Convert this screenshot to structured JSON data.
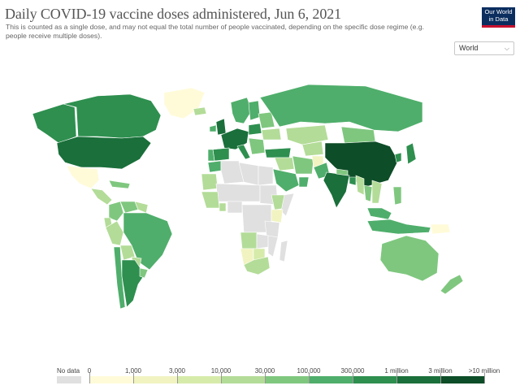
{
  "header": {
    "title": "Daily COVID-19 vaccine doses administered, Jun 6, 2021",
    "subtitle": "This is counted as a single dose, and may not equal the total number of people vaccinated, depending on the specific dose regime (e.g. people receive multiple doses).",
    "logo_line1": "Our World",
    "logo_line2": "in Data"
  },
  "region_select": {
    "value": "World",
    "icon": "chevron-down-icon"
  },
  "legend": {
    "no_data_label": "No data",
    "no_data_color": "#e0e0e0",
    "ticks": [
      "0",
      "1,000",
      "3,000",
      "10,000",
      "30,000",
      "100,000",
      "300,000",
      "1 million",
      "3 million",
      ">10 million"
    ],
    "colors": [
      "#fffbd9",
      "#f1f4c1",
      "#d6ebaa",
      "#b3dc98",
      "#7fc77f",
      "#4fae6b",
      "#2e8f4f",
      "#1a6f3a",
      "#0d4d27"
    ]
  },
  "map": {
    "ocean_color": "#ffffff",
    "regions": [
      {
        "name": "Canada",
        "bin": 6
      },
      {
        "name": "Greenland",
        "bin": 0
      },
      {
        "name": "Alaska",
        "bin": 6
      },
      {
        "name": "United States",
        "bin": 7
      },
      {
        "name": "Mexico",
        "bin": 0
      },
      {
        "name": "Central America",
        "bin": 3
      },
      {
        "name": "Caribbean",
        "bin": 4
      },
      {
        "name": "Colombia",
        "bin": 4
      },
      {
        "name": "Venezuela",
        "bin": 4
      },
      {
        "name": "Guianas",
        "bin": 3
      },
      {
        "name": "Ecuador",
        "bin": 3
      },
      {
        "name": "Peru",
        "bin": 3
      },
      {
        "name": "Brazil",
        "bin": 5
      },
      {
        "name": "Bolivia",
        "bin": 3
      },
      {
        "name": "Paraguay",
        "bin": 3
      },
      {
        "name": "Uruguay",
        "bin": 4
      },
      {
        "name": "Chile",
        "bin": 5
      },
      {
        "name": "Argentina",
        "bin": 6
      },
      {
        "name": "Iceland",
        "bin": 3
      },
      {
        "name": "Scandinavia",
        "bin": 5
      },
      {
        "name": "Finland",
        "bin": 5
      },
      {
        "name": "United Kingdom",
        "bin": 7
      },
      {
        "name": "Ireland",
        "bin": 5
      },
      {
        "name": "Western Europe",
        "bin": 7
      },
      {
        "name": "Spain",
        "bin": 6
      },
      {
        "name": "Portugal",
        "bin": 5
      },
      {
        "name": "Italy",
        "bin": 6
      },
      {
        "name": "Poland",
        "bin": 6
      },
      {
        "name": "Eastern Europe",
        "bin": 4
      },
      {
        "name": "Ukraine",
        "bin": 3
      },
      {
        "name": "Balkans",
        "bin": 4
      },
      {
        "name": "Turkey",
        "bin": 6
      },
      {
        "name": "Russia",
        "bin": 5
      },
      {
        "name": "Kazakhstan",
        "bin": 3
      },
      {
        "name": "Central Asia",
        "bin": 3
      },
      {
        "name": "Mongolia",
        "bin": 4
      },
      {
        "name": "China",
        "bin": 8
      },
      {
        "name": "Japan",
        "bin": 6
      },
      {
        "name": "South Korea",
        "bin": 6
      },
      {
        "name": "Saudi Arabia",
        "bin": 5
      },
      {
        "name": "Iran",
        "bin": 4
      },
      {
        "name": "Iraq and Syria",
        "bin": 3
      },
      {
        "name": "Gulf states",
        "bin": 5
      },
      {
        "name": "Afghanistan",
        "bin": 1
      },
      {
        "name": "Pakistan",
        "bin": 5
      },
      {
        "name": "India",
        "bin": 7
      },
      {
        "name": "Nepal",
        "bin": 4
      },
      {
        "name": "Bangladesh",
        "bin": 6
      },
      {
        "name": "Myanmar",
        "bin": 3
      },
      {
        "name": "Thailand",
        "bin": 4
      },
      {
        "name": "Indochina",
        "bin": 3
      },
      {
        "name": "Malaysia",
        "bin": 5
      },
      {
        "name": "Indonesia",
        "bin": 5
      },
      {
        "name": "Philippines",
        "bin": 4
      },
      {
        "name": "Papua New Guinea",
        "bin": 0
      },
      {
        "name": "Australia",
        "bin": 4
      },
      {
        "name": "New Zealand",
        "bin": 4
      },
      {
        "name": "Morocco",
        "bin": 5
      },
      {
        "name": "Algeria",
        "bin": -1
      },
      {
        "name": "Libya",
        "bin": -1
      },
      {
        "name": "Egypt",
        "bin": -1
      },
      {
        "name": "Sahel",
        "bin": -1
      },
      {
        "name": "Mauritania",
        "bin": 3
      },
      {
        "name": "West Africa",
        "bin": 3
      },
      {
        "name": "Nigeria",
        "bin": -1
      },
      {
        "name": "Ghana",
        "bin": 3
      },
      {
        "name": "Central Africa",
        "bin": -1
      },
      {
        "name": "Sudan",
        "bin": -1
      },
      {
        "name": "Ethiopia",
        "bin": 3
      },
      {
        "name": "Somalia",
        "bin": -1
      },
      {
        "name": "Kenya",
        "bin": 1
      },
      {
        "name": "Tanzania",
        "bin": -1
      },
      {
        "name": "Angola",
        "bin": 3
      },
      {
        "name": "Zambia",
        "bin": -1
      },
      {
        "name": "Mozambique",
        "bin": -1
      },
      {
        "name": "Namibia",
        "bin": 1
      },
      {
        "name": "Botswana",
        "bin": 2
      },
      {
        "name": "South Africa",
        "bin": 3
      },
      {
        "name": "Madagascar",
        "bin": -1
      }
    ]
  }
}
